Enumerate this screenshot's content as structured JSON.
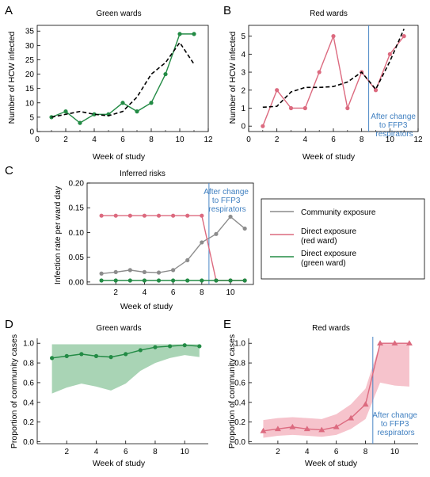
{
  "colors": {
    "green": "#238b45",
    "red": "#dc6a7f",
    "gray": "#8c8c8c",
    "black": "#000000",
    "blue_line": "#4a86c5",
    "green_band": "#a9d4b5",
    "red_band": "#f6c3cc"
  },
  "panels": {
    "A": {
      "letter": "A",
      "title": "Green wards",
      "xlabel": "Week of study",
      "ylabel": "Number of HCW infected"
    },
    "B": {
      "letter": "B",
      "title": "Red wards",
      "xlabel": "Week of study",
      "ylabel": "Number of HCW infected",
      "annotation": [
        "After change",
        "to FFP3",
        "respirators"
      ]
    },
    "C": {
      "letter": "C",
      "title": "Inferred risks",
      "xlabel": "Week of study",
      "ylabel": "Infection rate per ward day",
      "annotation": [
        "After change",
        "to FFP3",
        "respirators"
      ]
    },
    "D": {
      "letter": "D",
      "title": "Green wards",
      "xlabel": "Week of study",
      "ylabel": "Proportion of community cases"
    },
    "E": {
      "letter": "E",
      "title": "Red wards",
      "xlabel": "Week of study",
      "ylabel": "Proportion of community cases",
      "annotation": [
        "After change",
        "to FFP3",
        "respirators"
      ]
    }
  },
  "legend": {
    "items": [
      {
        "label_lines": [
          "Community exposure"
        ],
        "color": "#8c8c8c"
      },
      {
        "label_lines": [
          "Direct exposure",
          "(red ward)"
        ],
        "color": "#dc6a7f"
      },
      {
        "label_lines": [
          "Direct exposure",
          "(green ward)"
        ],
        "color": "#238b45"
      }
    ]
  },
  "chart_data": [
    {
      "id": "A",
      "type": "line",
      "title": "Green wards",
      "xlabel": "Week of study",
      "ylabel": "Number of HCW infected",
      "xlim": [
        0,
        12
      ],
      "ylim": [
        0,
        37
      ],
      "xticks": [
        0,
        2,
        4,
        6,
        8,
        10,
        12
      ],
      "yticks": [
        0,
        5,
        10,
        15,
        20,
        25,
        30,
        35
      ],
      "series": [
        {
          "style": "observed",
          "color": "#238b45",
          "markers": true,
          "x": [
            1,
            2,
            3,
            4,
            5,
            6,
            7,
            8,
            9,
            10,
            11
          ],
          "y": [
            5,
            7,
            3,
            6,
            6,
            10,
            7,
            10,
            20,
            34,
            34
          ]
        },
        {
          "style": "fitted",
          "color": "#000000",
          "dashed": true,
          "x": [
            1,
            2,
            3,
            4,
            5,
            6,
            7,
            8,
            9,
            10,
            11
          ],
          "y": [
            5,
            6,
            7,
            6,
            5.5,
            7,
            12,
            20,
            24,
            31,
            23.5
          ]
        }
      ]
    },
    {
      "id": "B",
      "type": "line",
      "title": "Red wards",
      "xlabel": "Week of study",
      "ylabel": "Number of HCW infected",
      "xlim": [
        0,
        12
      ],
      "ylim": [
        -0.3,
        5.6
      ],
      "xticks": [
        0,
        2,
        4,
        6,
        8,
        10,
        12
      ],
      "yticks": [
        0,
        1,
        2,
        3,
        4,
        5
      ],
      "vline": 8.5,
      "series": [
        {
          "style": "observed",
          "color": "#dc6a7f",
          "markers": true,
          "x": [
            1,
            2,
            3,
            4,
            5,
            6,
            7,
            8,
            9,
            10,
            11
          ],
          "y": [
            0,
            2,
            1,
            1,
            3,
            5,
            1,
            3,
            2,
            4,
            5
          ]
        },
        {
          "style": "fitted",
          "color": "#000000",
          "dashed": true,
          "x": [
            1,
            2,
            3,
            4,
            5,
            6,
            7,
            8,
            9,
            10,
            11
          ],
          "y": [
            1.05,
            1.1,
            1.9,
            2.15,
            2.15,
            2.2,
            2.45,
            3.0,
            2.05,
            3.6,
            5.4
          ]
        }
      ]
    },
    {
      "id": "C",
      "type": "line",
      "title": "Inferred risks",
      "xlabel": "Week of study",
      "ylabel": "Infection rate per ward day",
      "xlim": [
        0,
        11.6
      ],
      "ylim": [
        -0.005,
        0.2
      ],
      "xticks": [
        2,
        4,
        6,
        8,
        10
      ],
      "yticks": [
        0.0,
        0.05,
        0.1,
        0.15,
        0.2
      ],
      "ytick_labels": [
        "0.00",
        "0.05",
        "0.10",
        "0.15",
        "0.20"
      ],
      "vline": 8.5,
      "series": [
        {
          "name": "Community exposure",
          "color": "#8c8c8c",
          "markers": true,
          "x": [
            1,
            2,
            3,
            4,
            5,
            6,
            7,
            8,
            9,
            10,
            11
          ],
          "y": [
            0.017,
            0.02,
            0.024,
            0.02,
            0.019,
            0.024,
            0.044,
            0.08,
            0.097,
            0.132,
            0.108
          ]
        },
        {
          "name": "Direct exposure (red ward)",
          "color": "#dc6a7f",
          "markers": true,
          "x": [
            1,
            2,
            3,
            4,
            5,
            6,
            7,
            8,
            9,
            10,
            11
          ],
          "y": [
            0.134,
            0.134,
            0.134,
            0.134,
            0.134,
            0.134,
            0.134,
            0.134,
            0.003,
            0.003,
            0.003
          ]
        },
        {
          "name": "Direct exposure (green ward)",
          "color": "#238b45",
          "markers": true,
          "x": [
            1,
            2,
            3,
            4,
            5,
            6,
            7,
            8,
            9,
            10,
            11
          ],
          "y": [
            0.003,
            0.003,
            0.003,
            0.003,
            0.003,
            0.003,
            0.003,
            0.003,
            0.003,
            0.003,
            0.003
          ]
        }
      ]
    },
    {
      "id": "D",
      "type": "area",
      "title": "Green wards",
      "xlabel": "Week of study",
      "ylabel": "Proportion of community cases",
      "xlim": [
        0,
        11.6
      ],
      "ylim": [
        -0.02,
        1.05
      ],
      "xticks": [
        2,
        4,
        6,
        8,
        10
      ],
      "yticks": [
        0.0,
        0.2,
        0.4,
        0.6,
        0.8,
        1.0
      ],
      "ytick_labels": [
        "0.0",
        "0.2",
        "0.4",
        "0.6",
        "0.8",
        "1.0"
      ],
      "band": {
        "x": [
          1,
          2,
          3,
          4,
          5,
          6,
          7,
          8,
          9,
          10,
          11
        ],
        "lower": [
          0.49,
          0.55,
          0.59,
          0.56,
          0.52,
          0.59,
          0.72,
          0.8,
          0.85,
          0.88,
          0.86
        ],
        "upper": [
          0.99,
          0.99,
          0.99,
          0.99,
          0.99,
          0.99,
          0.99,
          0.99,
          0.99,
          0.99,
          0.99
        ]
      },
      "series": [
        {
          "color": "#238b45",
          "markers": true,
          "x": [
            1,
            2,
            3,
            4,
            5,
            6,
            7,
            8,
            9,
            10,
            11
          ],
          "y": [
            0.85,
            0.87,
            0.89,
            0.87,
            0.86,
            0.89,
            0.93,
            0.96,
            0.97,
            0.98,
            0.97
          ]
        }
      ]
    },
    {
      "id": "E",
      "type": "area",
      "title": "Red wards",
      "xlabel": "Week of study",
      "ylabel": "Proportion of community cases",
      "xlim": [
        0,
        11.6
      ],
      "ylim": [
        -0.02,
        1.05
      ],
      "xticks": [
        2,
        4,
        6,
        8,
        10
      ],
      "yticks": [
        0.0,
        0.2,
        0.4,
        0.6,
        0.8,
        1.0
      ],
      "ytick_labels": [
        "0.0",
        "0.2",
        "0.4",
        "0.6",
        "0.8",
        "1.0"
      ],
      "vline": 8.5,
      "band": {
        "x": [
          1,
          2,
          3,
          4,
          5,
          6,
          7,
          8,
          9,
          10,
          11
        ],
        "lower": [
          0.04,
          0.06,
          0.07,
          0.06,
          0.05,
          0.07,
          0.13,
          0.23,
          0.6,
          0.57,
          0.56
        ],
        "upper": [
          0.22,
          0.24,
          0.25,
          0.24,
          0.23,
          0.28,
          0.38,
          0.54,
          1.0,
          1.0,
          1.0
        ]
      },
      "series": [
        {
          "color": "#dc6a7f",
          "markers": "triangle",
          "x": [
            1,
            2,
            3,
            4,
            5,
            6,
            7,
            8,
            9,
            10,
            11
          ],
          "y": [
            0.11,
            0.13,
            0.15,
            0.13,
            0.12,
            0.15,
            0.24,
            0.38,
            1.0,
            1.0,
            1.0
          ]
        }
      ]
    }
  ]
}
